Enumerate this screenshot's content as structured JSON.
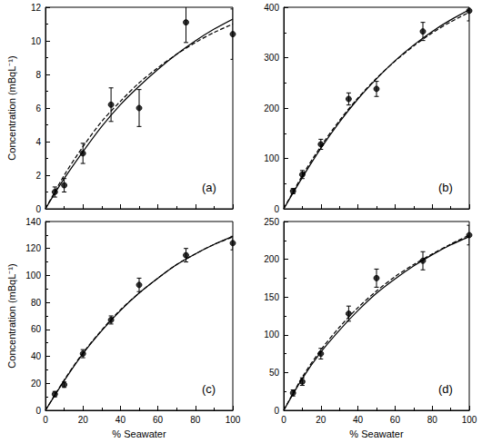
{
  "chart_data": [
    {
      "type": "scatter",
      "title": "(a)",
      "y_label": "Concentration (mBqL⁻¹)",
      "tick_labels": "y",
      "grid": false,
      "xlim": [
        0,
        100
      ],
      "xticks": [
        0,
        20,
        40,
        60,
        80,
        100
      ],
      "ylim": [
        0,
        12
      ],
      "yticks": [
        0,
        2,
        4,
        6,
        8,
        10,
        12
      ],
      "series": [
        {
          "type": "scatter",
          "marker": "circle",
          "color": "#000000",
          "x": [
            5,
            10,
            20,
            35,
            50,
            75,
            100
          ],
          "values": [
            1.0,
            1.4,
            3.3,
            6.2,
            6.0,
            11.1,
            10.4
          ],
          "errors": [
            0.3,
            0.4,
            0.6,
            1.0,
            1.1,
            1.2,
            1.5
          ]
        },
        {
          "type": "line",
          "line_style": "solid",
          "color": "#000000",
          "x": [
            0,
            10,
            20,
            30,
            40,
            50,
            60,
            70,
            80,
            90,
            100
          ],
          "values": [
            0,
            1.8,
            3.4,
            4.9,
            6.2,
            7.3,
            8.3,
            9.2,
            10.0,
            10.7,
            11.3
          ]
        },
        {
          "type": "line",
          "line_style": "dashed",
          "color": "#000000",
          "x": [
            0,
            10,
            20,
            30,
            40,
            50,
            60,
            70,
            80,
            90,
            100
          ],
          "values": [
            0,
            2.0,
            3.7,
            5.2,
            6.4,
            7.5,
            8.4,
            9.2,
            9.9,
            10.5,
            11.0
          ]
        }
      ]
    },
    {
      "type": "scatter",
      "title": "(b)",
      "tick_labels": "y",
      "grid": false,
      "xlim": [
        0,
        100
      ],
      "xticks": [
        0,
        20,
        40,
        60,
        80,
        100
      ],
      "ylim": [
        0,
        400
      ],
      "yticks": [
        0,
        100,
        200,
        300,
        400
      ],
      "series": [
        {
          "type": "scatter",
          "marker": "circle",
          "color": "#000000",
          "x": [
            5,
            10,
            20,
            35,
            50,
            75,
            100
          ],
          "values": [
            35,
            68,
            128,
            218,
            238,
            352,
            393
          ],
          "errors": [
            5,
            8,
            10,
            12,
            15,
            18,
            20
          ]
        },
        {
          "type": "line",
          "line_style": "solid",
          "color": "#000000",
          "x": [
            0,
            10,
            20,
            30,
            40,
            50,
            60,
            70,
            80,
            90,
            100
          ],
          "values": [
            0,
            62,
            120,
            172,
            218,
            258,
            294,
            325,
            352,
            375,
            395
          ]
        },
        {
          "type": "line",
          "line_style": "dashed",
          "color": "#000000",
          "x": [
            0,
            10,
            20,
            30,
            40,
            50,
            60,
            70,
            80,
            90,
            100
          ],
          "values": [
            0,
            66,
            124,
            175,
            220,
            259,
            293,
            323,
            349,
            371,
            390
          ]
        }
      ]
    },
    {
      "type": "scatter",
      "title": "(c)",
      "x_label": "% Seawater",
      "y_label": "Concentration (mBqL⁻¹)",
      "grid": false,
      "xlim": [
        0,
        100
      ],
      "xticks": [
        0,
        20,
        40,
        60,
        80,
        100
      ],
      "ylim": [
        0,
        140
      ],
      "yticks": [
        0,
        20,
        40,
        60,
        80,
        100,
        120,
        140
      ],
      "series": [
        {
          "type": "scatter",
          "marker": "circle",
          "color": "#000000",
          "x": [
            5,
            10,
            20,
            35,
            50,
            75,
            100
          ],
          "values": [
            12,
            19,
            42,
            67,
            93,
            115,
            124
          ],
          "errors": [
            2,
            2,
            3,
            3,
            5,
            5,
            5
          ]
        },
        {
          "type": "line",
          "line_style": "solid",
          "color": "#000000",
          "x": [
            0,
            10,
            20,
            30,
            40,
            50,
            60,
            70,
            80,
            90,
            100
          ],
          "values": [
            0,
            22,
            42,
            59,
            74,
            87,
            98,
            108,
            116,
            123,
            129
          ]
        },
        {
          "type": "line",
          "line_style": "dashed",
          "color": "#000000",
          "x": [
            0,
            10,
            20,
            30,
            40,
            50,
            60,
            70,
            80,
            90,
            100
          ],
          "values": [
            0,
            22.5,
            42.5,
            59.5,
            74.5,
            87,
            98,
            108,
            116,
            123,
            128.5
          ]
        }
      ]
    },
    {
      "type": "scatter",
      "title": "(d)",
      "x_label": "% Seawater",
      "grid": false,
      "xlim": [
        0,
        100
      ],
      "xticks": [
        0,
        20,
        40,
        60,
        80,
        100
      ],
      "ylim": [
        0,
        250
      ],
      "yticks": [
        0,
        50,
        100,
        150,
        200,
        250
      ],
      "series": [
        {
          "type": "scatter",
          "marker": "circle",
          "color": "#000000",
          "x": [
            5,
            10,
            20,
            35,
            50,
            75,
            100
          ],
          "values": [
            23,
            38,
            75,
            128,
            175,
            198,
            232
          ],
          "errors": [
            4,
            5,
            7,
            10,
            12,
            12,
            13
          ]
        },
        {
          "type": "line",
          "line_style": "solid",
          "color": "#000000",
          "x": [
            0,
            10,
            20,
            30,
            40,
            50,
            60,
            70,
            80,
            90,
            100
          ],
          "values": [
            0,
            42,
            77,
            106,
            132,
            155,
            174,
            191,
            206,
            219,
            230
          ]
        },
        {
          "type": "line",
          "line_style": "dashed",
          "color": "#000000",
          "x": [
            0,
            10,
            20,
            30,
            40,
            50,
            60,
            70,
            80,
            90,
            100
          ],
          "values": [
            0,
            44,
            80,
            110,
            136,
            158,
            177,
            193,
            207,
            220,
            232
          ]
        }
      ]
    }
  ]
}
